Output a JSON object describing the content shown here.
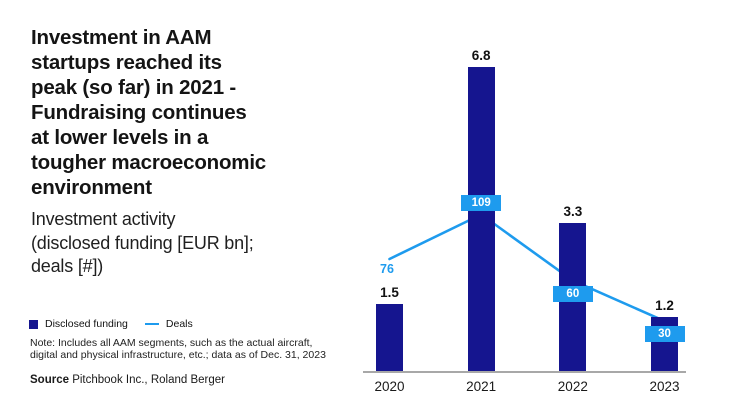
{
  "colors": {
    "navy": "#15158F",
    "light_blue": "#1E9BEE",
    "axis_gray": "#A8A8A8",
    "text_dark": "#1A1A1A",
    "badge_text": "#FFFFFF"
  },
  "header": {
    "title": "Investment in AAM\nstartups reached its\npeak (so far) in 2021 -\nFundraising continues\nat lower levels in a\ntougher macroeconomic\nenvironment",
    "subtitle": "Investment activity\n(disclosed funding [EUR bn];\ndeals [#])"
  },
  "legend": {
    "items": [
      {
        "label": "Disclosed funding",
        "swatch": "square",
        "color": "#15158F"
      },
      {
        "label": "Deals",
        "swatch": "line",
        "color": "#1E9BEE"
      }
    ]
  },
  "note": "Note: Includes all AAM segments, such as the actual aircraft,\ndigital and physical infrastructure, etc.; data as of Dec. 31, 2023",
  "source": {
    "label": "Source",
    "text": " Pitchbook Inc., Roland Berger"
  },
  "chart_data": {
    "type": "bar",
    "subtype": "combo bar + line, dual implicit axes, no gridlines, no y-axis",
    "title": "Investment activity (disclosed funding [EUR bn]; deals [#])",
    "categories": [
      "2020",
      "2021",
      "2022",
      "2023"
    ],
    "series": [
      {
        "name": "Disclosed funding",
        "type": "bar",
        "unit": "EUR bn",
        "color": "#15158F",
        "values": [
          1.5,
          6.8,
          3.3,
          1.2
        ],
        "value_labels": [
          "1.5",
          "6.8",
          "3.3",
          "1.2"
        ]
      },
      {
        "name": "Deals",
        "type": "line",
        "unit": "#",
        "color": "#1E9BEE",
        "values": [
          76,
          109,
          60,
          30
        ],
        "value_labels": [
          "76",
          "109",
          "60",
          "30"
        ],
        "label_styles": [
          "plain",
          "badge",
          "badge",
          "badge"
        ],
        "label_positions": [
          "below",
          "above",
          "below",
          "below"
        ]
      }
    ],
    "legend_position": "left text column, below subtitle",
    "grid": false,
    "value_labels_shown": true
  }
}
